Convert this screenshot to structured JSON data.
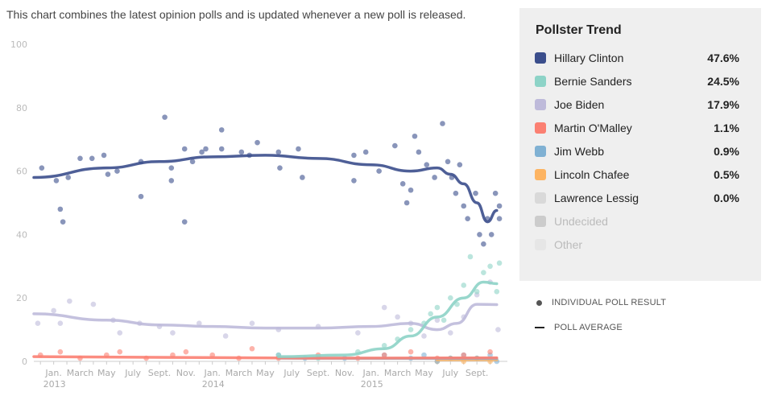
{
  "intro": "This chart combines the latest opinion polls and is updated whenever a new poll is released.",
  "legend": {
    "title": "Pollster Trend",
    "items": [
      {
        "name": "Hillary Clinton",
        "value": "47.6%",
        "color": "#3b4e8c"
      },
      {
        "name": "Bernie Sanders",
        "value": "24.5%",
        "color": "#8dd3c7"
      },
      {
        "name": "Joe Biden",
        "value": "17.9%",
        "color": "#bebada"
      },
      {
        "name": "Martin O'Malley",
        "value": "1.1%",
        "color": "#fb8072"
      },
      {
        "name": "Jim Webb",
        "value": "0.9%",
        "color": "#80b1d3"
      },
      {
        "name": "Lincoln Chafee",
        "value": "0.5%",
        "color": "#fdb462"
      },
      {
        "name": "Lawrence Lessig",
        "value": "0.0%",
        "color": "#d9d9d9"
      },
      {
        "name": "Undecided",
        "value": "",
        "color": "#cccccc",
        "dim": true
      },
      {
        "name": "Other",
        "value": "",
        "color": "#e6e6e6",
        "dim": true
      }
    ]
  },
  "key": {
    "point": "INDIVIDUAL POLL RESULT",
    "line": "POLL AVERAGE"
  },
  "chart_data": {
    "type": "line",
    "x_units": "months since Jan 2013",
    "xlim": [
      -1.5,
      34
    ],
    "ylim": [
      0,
      100
    ],
    "yticks": [
      0,
      20,
      40,
      60,
      80,
      100
    ],
    "xticks": [
      {
        "m": 0,
        "label": "Jan.",
        "year": "2013"
      },
      {
        "m": 2,
        "label": "March"
      },
      {
        "m": 4,
        "label": "May"
      },
      {
        "m": 6,
        "label": "July"
      },
      {
        "m": 8,
        "label": "Sept."
      },
      {
        "m": 10,
        "label": "Nov."
      },
      {
        "m": 12,
        "label": "Jan.",
        "year": "2014"
      },
      {
        "m": 14,
        "label": "March"
      },
      {
        "m": 16,
        "label": "May"
      },
      {
        "m": 18,
        "label": "July"
      },
      {
        "m": 20,
        "label": "Sept."
      },
      {
        "m": 22,
        "label": "Nov."
      },
      {
        "m": 24,
        "label": "Jan.",
        "year": "2015"
      },
      {
        "m": 26,
        "label": "March"
      },
      {
        "m": 28,
        "label": "May"
      },
      {
        "m": 30,
        "label": "July"
      },
      {
        "m": 32,
        "label": "Sept."
      }
    ],
    "grid": false,
    "series": [
      {
        "name": "Hillary Clinton",
        "color": "#3b4e8c",
        "trend": [
          [
            -1.5,
            58
          ],
          [
            4,
            61
          ],
          [
            8,
            63
          ],
          [
            12,
            64.5
          ],
          [
            16,
            65
          ],
          [
            20,
            64
          ],
          [
            24,
            62
          ],
          [
            27,
            60
          ],
          [
            29,
            61
          ],
          [
            30,
            59
          ],
          [
            31,
            56
          ],
          [
            32,
            50
          ],
          [
            32.8,
            44
          ],
          [
            33.5,
            47.6
          ]
        ],
        "polls": [
          [
            -0.9,
            61
          ],
          [
            0.2,
            57
          ],
          [
            0.5,
            48
          ],
          [
            0.7,
            44
          ],
          [
            1.1,
            58
          ],
          [
            2,
            64
          ],
          [
            2.9,
            64
          ],
          [
            3.8,
            65
          ],
          [
            4.1,
            59
          ],
          [
            4.8,
            60
          ],
          [
            6.6,
            52
          ],
          [
            6.6,
            63
          ],
          [
            8.4,
            77
          ],
          [
            8.9,
            61
          ],
          [
            8.9,
            57
          ],
          [
            9.9,
            44
          ],
          [
            9.9,
            67
          ],
          [
            10.5,
            63
          ],
          [
            11.2,
            66
          ],
          [
            11.5,
            67
          ],
          [
            12.7,
            73
          ],
          [
            12.7,
            67
          ],
          [
            14.2,
            66
          ],
          [
            14.8,
            65
          ],
          [
            15.4,
            69
          ],
          [
            17,
            66
          ],
          [
            17.1,
            61
          ],
          [
            18.5,
            67
          ],
          [
            18.8,
            58
          ],
          [
            22.7,
            65
          ],
          [
            22.7,
            57
          ],
          [
            23.6,
            66
          ],
          [
            24.6,
            60
          ],
          [
            25.8,
            68
          ],
          [
            26.4,
            56
          ],
          [
            26.7,
            50
          ],
          [
            27,
            54
          ],
          [
            27.3,
            71
          ],
          [
            27.6,
            66
          ],
          [
            28.2,
            62
          ],
          [
            28.8,
            58
          ],
          [
            29.4,
            75
          ],
          [
            29.8,
            63
          ],
          [
            30.1,
            58
          ],
          [
            30.4,
            53
          ],
          [
            30.7,
            62
          ],
          [
            31,
            49
          ],
          [
            31.3,
            45
          ],
          [
            31.9,
            53
          ],
          [
            32.2,
            40
          ],
          [
            32.5,
            37
          ],
          [
            32.8,
            45
          ],
          [
            33.1,
            40
          ],
          [
            33.4,
            53
          ],
          [
            33.7,
            45
          ],
          [
            33.7,
            49
          ]
        ]
      },
      {
        "name": "Bernie Sanders",
        "color": "#8dd3c7",
        "trend": [
          [
            17,
            1.5
          ],
          [
            22,
            2
          ],
          [
            25,
            4
          ],
          [
            27,
            8
          ],
          [
            29,
            14
          ],
          [
            31,
            20
          ],
          [
            32.5,
            25
          ],
          [
            33.5,
            24.5
          ]
        ],
        "polls": [
          [
            17,
            2
          ],
          [
            20,
            1
          ],
          [
            23,
            3
          ],
          [
            25,
            5
          ],
          [
            26,
            7
          ],
          [
            27,
            10
          ],
          [
            28,
            12
          ],
          [
            28.5,
            15
          ],
          [
            29,
            17
          ],
          [
            29.5,
            13
          ],
          [
            30,
            20
          ],
          [
            30.5,
            18
          ],
          [
            31,
            24
          ],
          [
            31.5,
            33
          ],
          [
            32,
            22
          ],
          [
            32.5,
            28
          ],
          [
            33,
            30
          ],
          [
            33.5,
            22
          ],
          [
            33.7,
            31
          ]
        ]
      },
      {
        "name": "Joe Biden",
        "color": "#bebada",
        "trend": [
          [
            -1.5,
            15
          ],
          [
            4,
            13
          ],
          [
            8,
            11.5
          ],
          [
            12,
            11
          ],
          [
            16,
            10.5
          ],
          [
            20,
            10.5
          ],
          [
            24,
            11
          ],
          [
            27,
            12
          ],
          [
            29,
            10
          ],
          [
            30.5,
            12
          ],
          [
            32,
            18
          ],
          [
            33.5,
            17.9
          ]
        ],
        "polls": [
          [
            -1.2,
            12
          ],
          [
            0,
            16
          ],
          [
            0.5,
            12
          ],
          [
            1.2,
            19
          ],
          [
            3,
            18
          ],
          [
            4.5,
            13
          ],
          [
            5,
            9
          ],
          [
            6.5,
            12
          ],
          [
            8,
            11
          ],
          [
            9,
            9
          ],
          [
            11,
            12
          ],
          [
            13,
            8
          ],
          [
            15,
            12
          ],
          [
            17,
            10
          ],
          [
            20,
            11
          ],
          [
            23,
            9
          ],
          [
            25,
            17
          ],
          [
            26,
            14
          ],
          [
            27,
            12
          ],
          [
            28,
            8
          ],
          [
            29,
            13
          ],
          [
            30,
            9
          ],
          [
            31,
            14
          ],
          [
            32,
            21
          ],
          [
            33,
            25
          ],
          [
            33.6,
            10
          ]
        ]
      },
      {
        "name": "Martin O'Malley",
        "color": "#fb8072",
        "trend": [
          [
            -1.5,
            1.5
          ],
          [
            20,
            1
          ],
          [
            33.5,
            1.1
          ]
        ],
        "polls": [
          [
            -1,
            2
          ],
          [
            0.5,
            3
          ],
          [
            2,
            1
          ],
          [
            4,
            2
          ],
          [
            5,
            3
          ],
          [
            7,
            1
          ],
          [
            9,
            2
          ],
          [
            10,
            3
          ],
          [
            12,
            2
          ],
          [
            14,
            1
          ],
          [
            15,
            4
          ],
          [
            17,
            1
          ],
          [
            20,
            2
          ],
          [
            23,
            1
          ],
          [
            25,
            2
          ],
          [
            27,
            3
          ],
          [
            29,
            1
          ],
          [
            31,
            2
          ],
          [
            33,
            3
          ]
        ]
      },
      {
        "name": "Jim Webb",
        "color": "#80b1d3",
        "trend": [
          [
            17,
            1
          ],
          [
            33.5,
            0.9
          ]
        ],
        "polls": [
          [
            17,
            2
          ],
          [
            19,
            1
          ],
          [
            22,
            1
          ],
          [
            25,
            2
          ],
          [
            27,
            1
          ],
          [
            28,
            2
          ],
          [
            29,
            0
          ],
          [
            30,
            1
          ],
          [
            31,
            2
          ],
          [
            32,
            1
          ],
          [
            33,
            2
          ],
          [
            33.5,
            0
          ]
        ]
      },
      {
        "name": "Lincoln Chafee",
        "color": "#fdb462",
        "trend": [
          [
            29,
            0.5
          ],
          [
            33.5,
            0.5
          ]
        ],
        "polls": [
          [
            29,
            0
          ],
          [
            30,
            1
          ],
          [
            31,
            0
          ],
          [
            32,
            1
          ],
          [
            33,
            0
          ]
        ]
      }
    ]
  }
}
